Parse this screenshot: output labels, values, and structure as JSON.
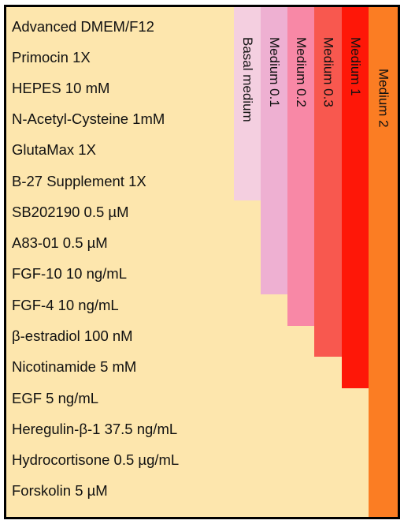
{
  "ingredients": [
    "Advanced DMEM/F12",
    "Primocin 1X",
    "HEPES 10 mM",
    "N-Acetyl-Cysteine 1mM",
    "GlutaMax 1X",
    "B-27 Supplement 1X",
    "SB202190 0.5 µM",
    "A83-01 0.5 µM",
    "FGF-10 10 ng/mL",
    "FGF-4 10 ng/mL",
    "β-estradiol 100 nM",
    "Nicotinamide 5 mM",
    "EGF 5 ng/mL",
    "Heregulin-β-1 37.5 ng/mL",
    "Hydrocortisone 0.5 µg/mL",
    "Forskolin 5 µM"
  ],
  "media": [
    {
      "label": "Basal medium",
      "color": "#f4cfe0",
      "ingredient_count": 6
    },
    {
      "label": "Medium 0.1",
      "color": "#eeb0d2",
      "ingredient_count": 8
    },
    {
      "label": "Medium 0.2",
      "color": "#f888a6",
      "ingredient_count": 10
    },
    {
      "label": "Medium 0.3",
      "color": "#f8584f",
      "ingredient_count": 11
    },
    {
      "label": "Medium 1",
      "color": "#fe1708",
      "ingredient_count": 12
    },
    {
      "label": "Medium 2",
      "color": "#fb7d23",
      "ingredient_count": 16
    }
  ],
  "colors": {
    "background": "#fde6ad",
    "border": "#000000"
  }
}
